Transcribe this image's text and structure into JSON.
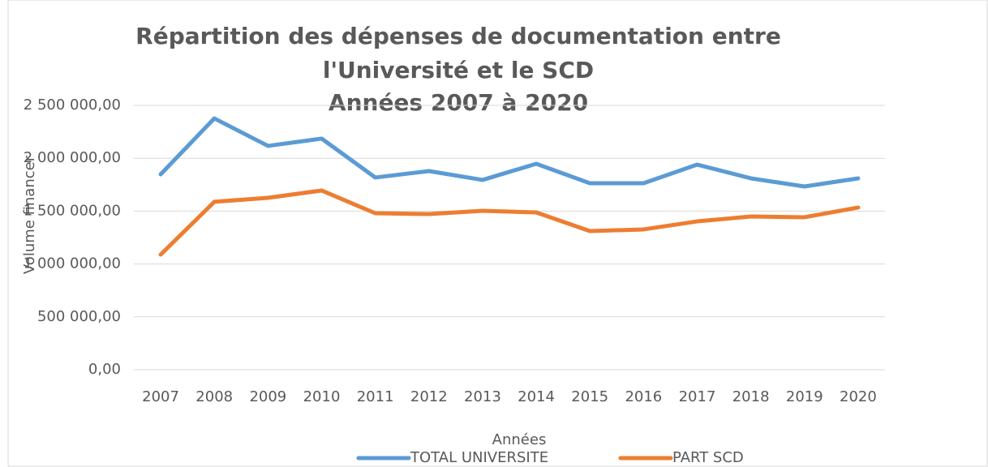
{
  "chart_data": {
    "type": "line",
    "title": [
      "Répartition des dépenses de documentation entre",
      "l'Université et le SCD",
      "Années 2007 à 2020"
    ],
    "x_label": "Années",
    "y_label": "Volume financer",
    "categories": [
      "2007",
      "2008",
      "2009",
      "2010",
      "2011",
      "2012",
      "2013",
      "2014",
      "2015",
      "2016",
      "2017",
      "2018",
      "2019",
      "2020"
    ],
    "series": [
      {
        "name": "TOTAL UNIVERSITE",
        "color": "#5b9bd5",
        "values": [
          1848000,
          2377000,
          2117000,
          2186000,
          1818000,
          1879000,
          1795000,
          1948000,
          1764000,
          1764000,
          1940000,
          1810000,
          1733000,
          1810000
        ]
      },
      {
        "name": "PART SCD",
        "color": "#ed7d31",
        "values": [
          1089000,
          1588000,
          1626000,
          1695000,
          1480000,
          1472000,
          1503000,
          1488000,
          1311000,
          1327000,
          1403000,
          1449000,
          1442000,
          1534000
        ]
      }
    ],
    "ylim": [
      0,
      2500000
    ],
    "yticks": [
      {
        "value": 0,
        "label": "0,00"
      },
      {
        "value": 500000,
        "label": "500 000,00"
      },
      {
        "value": 1000000,
        "label": "1 000 000,00"
      },
      {
        "value": 1500000,
        "label": "1 500 000,00"
      },
      {
        "value": 2000000,
        "label": "2 000 000,00"
      },
      {
        "value": 2500000,
        "label": "2 500 000,00"
      }
    ],
    "grid": true,
    "legend": "bottom"
  }
}
